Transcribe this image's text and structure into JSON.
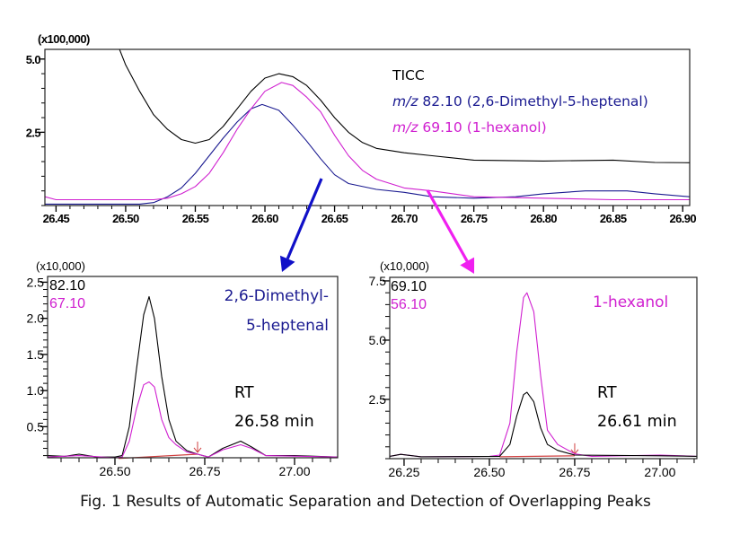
{
  "caption": "Fig. 1 Results of Automatic Separation and Detection of Overlapping Peaks",
  "colors": {
    "black": "#000000",
    "blue": "#1a1a90",
    "magenta": "#d020d0",
    "baseline": "#d04040",
    "arrow_blue": "#1010c8",
    "arrow_magenta": "#f020f0"
  },
  "chart_data": [
    {
      "type": "line",
      "title": "",
      "xlabel": "",
      "ylabel": "",
      "y_multiplier": "(x100,000)",
      "xlim": [
        26.442,
        26.905
      ],
      "ylim": [
        0,
        5.33
      ],
      "xticks": [
        "26.45",
        "26.50",
        "26.55",
        "26.60",
        "26.65",
        "26.70",
        "26.75",
        "26.80",
        "26.85",
        "26.90"
      ],
      "yticks": [
        "2.5",
        "5.0"
      ],
      "legend": {
        "placement": "top-right",
        "entries": [
          {
            "prefix": "",
            "text": "TICC"
          },
          {
            "prefix": "m/z",
            "text": " 82.10 (2,6-Dimethyl-5-heptenal)"
          },
          {
            "prefix": "m/z",
            "text": " 69.10 (1-hexanol)"
          }
        ]
      },
      "series": [
        {
          "name": "TICC",
          "color": "#000000",
          "points": [
            [
              26.495,
              5.4
            ],
            [
              26.5,
              4.8
            ],
            [
              26.51,
              3.9
            ],
            [
              26.52,
              3.1
            ],
            [
              26.53,
              2.6
            ],
            [
              26.54,
              2.25
            ],
            [
              26.55,
              2.13
            ],
            [
              26.56,
              2.25
            ],
            [
              26.57,
              2.7
            ],
            [
              26.58,
              3.3
            ],
            [
              26.59,
              3.9
            ],
            [
              26.6,
              4.35
            ],
            [
              26.61,
              4.5
            ],
            [
              26.62,
              4.4
            ],
            [
              26.63,
              4.1
            ],
            [
              26.64,
              3.6
            ],
            [
              26.65,
              3.0
            ],
            [
              26.66,
              2.5
            ],
            [
              26.67,
              2.15
            ],
            [
              26.68,
              1.95
            ],
            [
              26.7,
              1.8
            ],
            [
              26.72,
              1.7
            ],
            [
              26.75,
              1.55
            ],
            [
              26.8,
              1.52
            ],
            [
              26.85,
              1.55
            ],
            [
              26.88,
              1.47
            ],
            [
              26.905,
              1.46
            ]
          ]
        },
        {
          "name": "m/z 82.10",
          "color": "#1a1a90",
          "points": [
            [
              26.442,
              0.05
            ],
            [
              26.51,
              0.05
            ],
            [
              26.52,
              0.1
            ],
            [
              26.53,
              0.3
            ],
            [
              26.54,
              0.6
            ],
            [
              26.55,
              1.1
            ],
            [
              26.56,
              1.7
            ],
            [
              26.57,
              2.3
            ],
            [
              26.58,
              2.85
            ],
            [
              26.59,
              3.3
            ],
            [
              26.598,
              3.45
            ],
            [
              26.61,
              3.25
            ],
            [
              26.62,
              2.75
            ],
            [
              26.63,
              2.2
            ],
            [
              26.64,
              1.6
            ],
            [
              26.65,
              1.05
            ],
            [
              26.66,
              0.75
            ],
            [
              26.68,
              0.55
            ],
            [
              26.7,
              0.45
            ],
            [
              26.72,
              0.3
            ],
            [
              26.75,
              0.25
            ],
            [
              26.78,
              0.3
            ],
            [
              26.8,
              0.4
            ],
            [
              26.83,
              0.5
            ],
            [
              26.86,
              0.5
            ],
            [
              26.88,
              0.4
            ],
            [
              26.905,
              0.3
            ]
          ]
        },
        {
          "name": "m/z 69.10",
          "color": "#d020d0",
          "points": [
            [
              26.442,
              0.3
            ],
            [
              26.45,
              0.2
            ],
            [
              26.52,
              0.2
            ],
            [
              26.53,
              0.25
            ],
            [
              26.54,
              0.4
            ],
            [
              26.55,
              0.65
            ],
            [
              26.56,
              1.1
            ],
            [
              26.57,
              1.8
            ],
            [
              26.58,
              2.6
            ],
            [
              26.59,
              3.3
            ],
            [
              26.6,
              3.9
            ],
            [
              26.612,
              4.2
            ],
            [
              26.62,
              4.1
            ],
            [
              26.63,
              3.7
            ],
            [
              26.64,
              3.2
            ],
            [
              26.65,
              2.4
            ],
            [
              26.66,
              1.7
            ],
            [
              26.67,
              1.2
            ],
            [
              26.68,
              0.9
            ],
            [
              26.7,
              0.6
            ],
            [
              26.72,
              0.5
            ],
            [
              26.75,
              0.3
            ],
            [
              26.8,
              0.25
            ],
            [
              26.85,
              0.2
            ],
            [
              26.905,
              0.2
            ]
          ]
        }
      ]
    },
    {
      "type": "line",
      "y_multiplier": "(x10,000)",
      "xlim": [
        26.3125,
        27.12
      ],
      "ylim": [
        0.07,
        2.58
      ],
      "xticks": [
        "26.50",
        "26.75",
        "27.00"
      ],
      "yticks": [
        "0.5",
        "1.0",
        "1.5",
        "2.0",
        "2.5"
      ],
      "ions": [
        "82.10",
        "67.10"
      ],
      "compound": [
        "2,6-Dimethyl-",
        "5-heptenal"
      ],
      "rt_label": "RT",
      "rt_value": "26.58 min",
      "baseline": [
        [
          26.51,
          0.06
        ],
        [
          26.73,
          0.12
        ]
      ],
      "peak_end_marker": 26.73,
      "series": [
        {
          "name": "82.10",
          "color": "#000000",
          "points": [
            [
              26.3125,
              0.1
            ],
            [
              26.36,
              0.09
            ],
            [
              26.4,
              0.12
            ],
            [
              26.45,
              0.08
            ],
            [
              26.5,
              0.08
            ],
            [
              26.52,
              0.1
            ],
            [
              26.54,
              0.5
            ],
            [
              26.56,
              1.3
            ],
            [
              26.58,
              2.05
            ],
            [
              26.595,
              2.3
            ],
            [
              26.61,
              2.0
            ],
            [
              26.63,
              1.2
            ],
            [
              26.65,
              0.6
            ],
            [
              26.67,
              0.3
            ],
            [
              26.7,
              0.17
            ],
            [
              26.73,
              0.12
            ],
            [
              26.76,
              0.08
            ],
            [
              26.8,
              0.2
            ],
            [
              26.85,
              0.3
            ],
            [
              26.88,
              0.22
            ],
            [
              26.92,
              0.1
            ],
            [
              27.0,
              0.1
            ],
            [
              27.12,
              0.08
            ]
          ]
        },
        {
          "name": "67.10",
          "color": "#d020d0",
          "points": [
            [
              26.3125,
              0.08
            ],
            [
              26.4,
              0.1
            ],
            [
              26.5,
              0.07
            ],
            [
              26.52,
              0.08
            ],
            [
              26.54,
              0.3
            ],
            [
              26.56,
              0.75
            ],
            [
              26.58,
              1.08
            ],
            [
              26.595,
              1.12
            ],
            [
              26.61,
              1.05
            ],
            [
              26.63,
              0.6
            ],
            [
              26.65,
              0.35
            ],
            [
              26.67,
              0.25
            ],
            [
              26.7,
              0.15
            ],
            [
              26.73,
              0.12
            ],
            [
              26.76,
              0.08
            ],
            [
              26.8,
              0.18
            ],
            [
              26.85,
              0.25
            ],
            [
              26.88,
              0.2
            ],
            [
              26.92,
              0.1
            ],
            [
              27.12,
              0.08
            ]
          ]
        }
      ]
    },
    {
      "type": "line",
      "y_multiplier": "(x10,000)",
      "xlim": [
        26.208,
        27.108
      ],
      "ylim": [
        0,
        7.65
      ],
      "xticks": [
        "26.25",
        "26.50",
        "26.75",
        "27.00"
      ],
      "yticks": [
        "2.5",
        "5.0",
        "7.5"
      ],
      "ions": [
        "69.10",
        "56.10"
      ],
      "compound": [
        "1-hexanol"
      ],
      "rt_label": "RT",
      "rt_value": "26.61 min",
      "baseline": [
        [
          26.53,
          0.08
        ],
        [
          26.75,
          0.12
        ]
      ],
      "peak_end_marker": 26.75,
      "series": [
        {
          "name": "56.10",
          "color": "#d020d0",
          "points": [
            [
              26.208,
              0.1
            ],
            [
              26.24,
              0.18
            ],
            [
              26.3,
              0.08
            ],
            [
              26.5,
              0.1
            ],
            [
              26.53,
              0.15
            ],
            [
              26.56,
              1.5
            ],
            [
              26.58,
              4.5
            ],
            [
              26.6,
              6.8
            ],
            [
              26.61,
              7.0
            ],
            [
              26.63,
              6.2
            ],
            [
              26.65,
              3.5
            ],
            [
              26.67,
              1.2
            ],
            [
              26.7,
              0.6
            ],
            [
              26.75,
              0.2
            ],
            [
              26.8,
              0.1
            ],
            [
              27.0,
              0.15
            ],
            [
              27.108,
              0.1
            ]
          ]
        },
        {
          "name": "69.10",
          "color": "#000000",
          "points": [
            [
              26.208,
              0.1
            ],
            [
              26.24,
              0.18
            ],
            [
              26.3,
              0.08
            ],
            [
              26.53,
              0.1
            ],
            [
              26.56,
              0.6
            ],
            [
              26.58,
              1.8
            ],
            [
              26.6,
              2.7
            ],
            [
              26.61,
              2.8
            ],
            [
              26.63,
              2.4
            ],
            [
              26.65,
              1.3
            ],
            [
              26.67,
              0.6
            ],
            [
              26.7,
              0.35
            ],
            [
              26.75,
              0.15
            ],
            [
              27.0,
              0.12
            ],
            [
              27.108,
              0.1
            ]
          ]
        }
      ]
    }
  ]
}
